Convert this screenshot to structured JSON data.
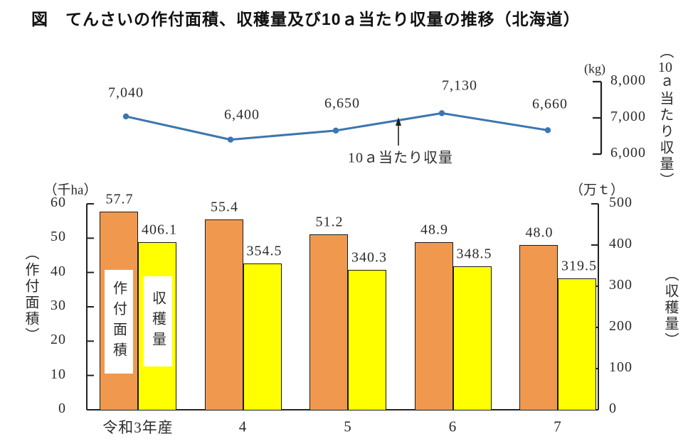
{
  "title": "図　てんさいの作付面積、収穫量及び10ａ当たり収量の推移（北海道）",
  "colors": {
    "line": "#3b76b0",
    "planted_area_bar": "#f0994e",
    "harvest_bar": "#ffff00",
    "bar_border": "#1a1a1a",
    "axis": "#222222"
  },
  "chart_data": [
    {
      "type": "line",
      "name": "10ａ当たり収量",
      "unit_label": "(kg)",
      "annotation": "10ａ当たり収量",
      "axis_title_parts": {
        "open": "（",
        "num": "10",
        "a": "ａ",
        "rest": "当たり収量",
        "close": "）"
      },
      "x": [
        "令和3年産",
        "4",
        "5",
        "6",
        "7"
      ],
      "values": [
        7040,
        6400,
        6650,
        7130,
        6660
      ],
      "point_labels": [
        "7,040",
        "6,400",
        "6,650",
        "7,130",
        "6,660"
      ],
      "axis_ticks": [
        "8,000",
        "7,000",
        "6,000"
      ],
      "ylim": [
        6000,
        8000
      ],
      "legend_position": "annotation-arrow",
      "grid": false
    },
    {
      "type": "bar",
      "categories": [
        "令和3年産",
        "4",
        "5",
        "6",
        "7"
      ],
      "series": [
        {
          "name": "作付面積",
          "unit_label": "（千ha）",
          "axis_title": "（作付面積）",
          "values": [
            57.7,
            55.4,
            51.2,
            48.9,
            48.0
          ],
          "value_labels": [
            "57.7",
            "55.4",
            "51.2",
            "48.9",
            "48.0"
          ],
          "axis_ticks": [
            "60",
            "50",
            "40",
            "30",
            "20",
            "10",
            "0"
          ],
          "ylim": [
            0,
            60
          ],
          "axis_side": "left"
        },
        {
          "name": "収穫量",
          "unit_label": "（万ｔ）",
          "axis_title": "（収穫量）",
          "values": [
            406.1,
            354.5,
            340.3,
            348.5,
            319.5
          ],
          "value_labels": [
            "406.1",
            "354.5",
            "340.3",
            "348.5",
            "319.5"
          ],
          "axis_ticks": [
            "500",
            "400",
            "300",
            "200",
            "100",
            "0"
          ],
          "ylim": [
            0,
            500
          ],
          "axis_side": "right"
        }
      ],
      "grid": false
    }
  ]
}
